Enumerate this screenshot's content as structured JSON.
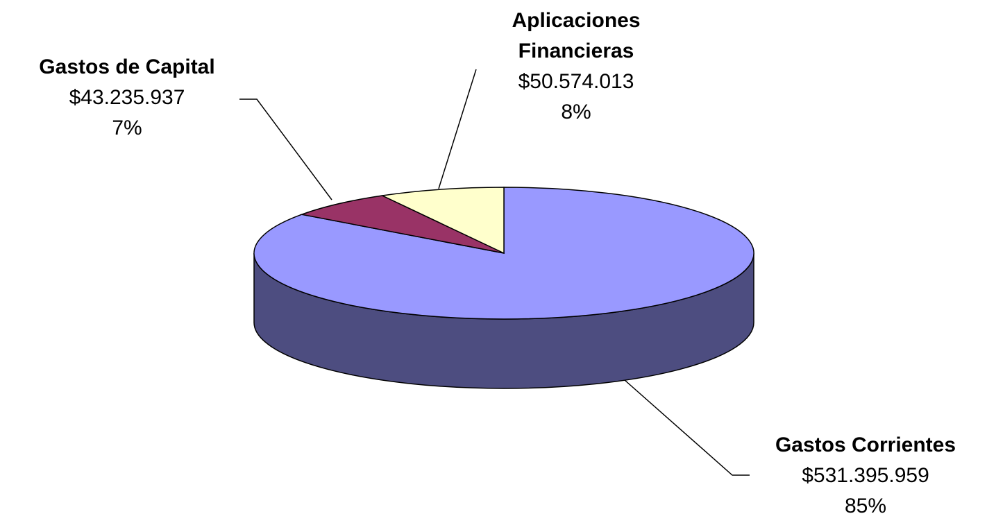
{
  "chart_data": {
    "type": "pie3d",
    "categories": [
      "Gastos Corrientes",
      "Gastos de Capital",
      "Aplicaciones Financieras"
    ],
    "values": [
      531395959,
      43235937,
      50574013
    ],
    "value_labels": [
      "$531.395.959",
      "$43.235.937",
      "$50.574.013"
    ],
    "percents": [
      85,
      7,
      8
    ],
    "percent_labels": [
      "85%",
      "7%",
      "8%"
    ],
    "colors": [
      "#9999ff",
      "#993366",
      "#ffffcc"
    ]
  }
}
